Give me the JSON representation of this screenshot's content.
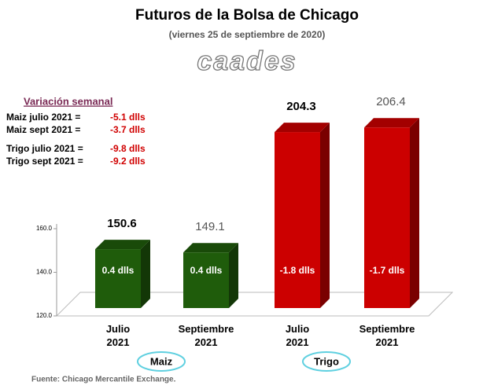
{
  "chart_data": {
    "type": "bar3d",
    "title": "Futuros de la Bolsa de Chicago",
    "subtitle": "(viernes 25 de septiembre de 2020)",
    "logo": "caades",
    "categories": [
      "Julio 2021",
      "Septiembre 2021",
      "Julio 2021",
      "Septiembre 2021"
    ],
    "values": [
      150.6,
      149.1,
      204.3,
      206.4
    ],
    "colors": [
      "#1f5c0b",
      "#1f5c0b",
      "#cc0000",
      "#cc0000"
    ],
    "label_colors": [
      "#000000",
      "#555555",
      "#000000",
      "#555555"
    ],
    "label_bold": [
      true,
      false,
      true,
      false
    ],
    "bar_notes": [
      "0.4 dlls",
      "0.4 dlls",
      "-1.8 dlls",
      "-1.7 dlls"
    ],
    "groups": [
      "Maiz",
      "Trigo"
    ],
    "ylim": [
      120,
      160
    ],
    "yticks": [
      {
        "value": 120,
        "label": "120.0"
      },
      {
        "value": 140,
        "label": "140.0"
      },
      {
        "value": 160,
        "label": "160.0"
      }
    ],
    "notes_title": "Variación semanal",
    "notes": [
      [
        {
          "label": "Maiz julio 2021 =",
          "value": "-5.1 dlls"
        },
        {
          "label": "Maiz sept 2021 =",
          "value": "-3.7 dlls"
        }
      ],
      [
        {
          "label": "Trigo julio 2021 =",
          "value": "-9.8 dlls"
        },
        {
          "label": "Trigo sept 2021 =",
          "value": "-9.2 dlls"
        }
      ]
    ],
    "source": "Fuente: Chicago Mercantile Exchange."
  }
}
